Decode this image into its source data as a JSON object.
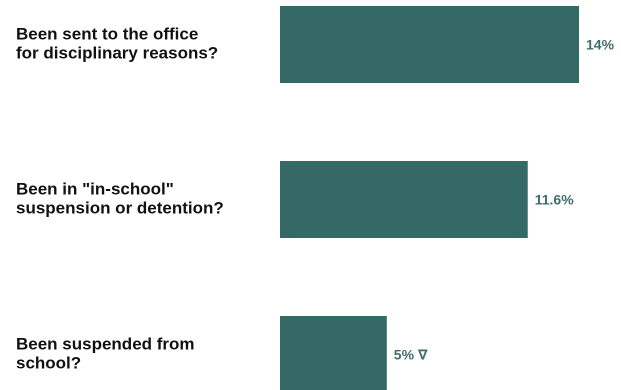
{
  "chart_data": {
    "type": "bar",
    "orientation": "horizontal",
    "categories": [
      [
        "Been sent to the office",
        "for disciplinary reasons?"
      ],
      [
        "Been in \"in-school\"",
        "suspension or detention?"
      ],
      [
        "Been suspended from",
        "school?"
      ]
    ],
    "values": [
      14,
      11.6,
      5
    ],
    "value_labels": [
      "14%",
      "11.6%",
      "5% ∇"
    ],
    "xlim": [
      0,
      14
    ],
    "grid": false,
    "legend": "none"
  },
  "colors": {
    "bar": "#356966",
    "value_text": "#3d6f6c",
    "category_text": "#111111",
    "background": "#ffffff"
  }
}
